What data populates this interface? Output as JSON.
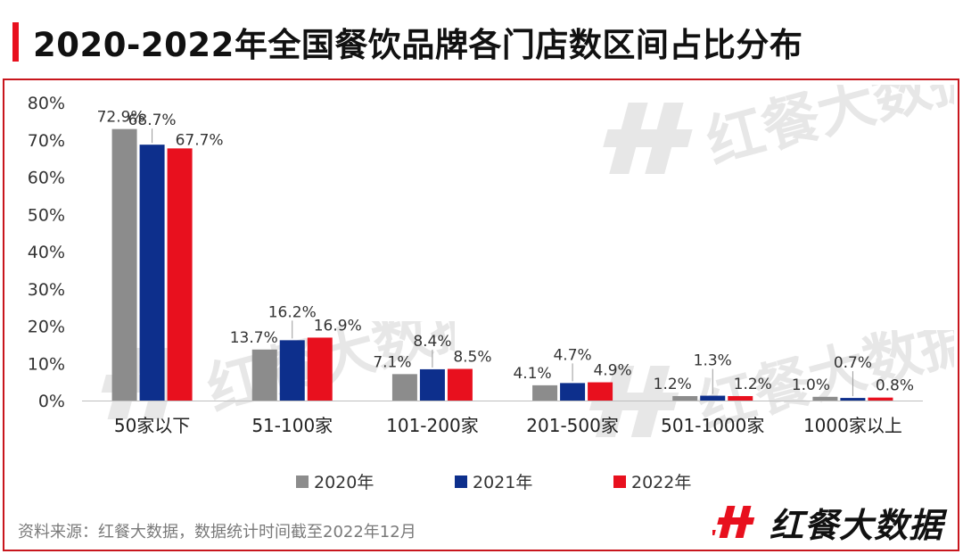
{
  "title": "2020-2022年全国餐饮品牌各门店数区间占比分布",
  "source_note": "资料来源：红餐大数据，数据统计时间截至2022年12月",
  "brand_name": "红餐大数据",
  "colors": {
    "accent": "#e8101e",
    "border": "#c8161d",
    "series_2020": "#8c8c8c",
    "series_2021": "#0d2f8c",
    "series_2022": "#e8101e"
  },
  "chart_data": {
    "type": "bar",
    "title": "2020-2022年全国餐饮品牌各门店数区间占比分布",
    "xlabel": "",
    "ylabel": "",
    "ylim": [
      0,
      80
    ],
    "y_ticks": [
      "0%",
      "10%",
      "20%",
      "30%",
      "40%",
      "50%",
      "60%",
      "70%",
      "80%"
    ],
    "y_tick_values": [
      0,
      10,
      20,
      30,
      40,
      50,
      60,
      70,
      80
    ],
    "grid": false,
    "legend_position": "bottom",
    "categories": [
      "50家以下",
      "51-100家",
      "101-200家",
      "201-500家",
      "501-1000家",
      "1000家以上"
    ],
    "series": [
      {
        "name": "2020年",
        "color": "#8c8c8c",
        "values": [
          72.9,
          13.7,
          7.1,
          4.1,
          1.2,
          1.0
        ],
        "labels": [
          "72.9%",
          "13.7%",
          "7.1%",
          "4.1%",
          "1.2%",
          "1.0%"
        ]
      },
      {
        "name": "2021年",
        "color": "#0d2f8c",
        "values": [
          68.7,
          16.2,
          8.4,
          4.7,
          1.3,
          0.7
        ],
        "labels": [
          "68.7%",
          "16.2%",
          "8.4%",
          "4.7%",
          "1.3%",
          "0.7%"
        ]
      },
      {
        "name": "2022年",
        "color": "#e8101e",
        "values": [
          67.7,
          16.9,
          8.5,
          4.9,
          1.2,
          0.8
        ],
        "labels": [
          "67.7%",
          "16.9%",
          "8.5%",
          "4.9%",
          "1.2%",
          "0.8%"
        ]
      }
    ]
  }
}
